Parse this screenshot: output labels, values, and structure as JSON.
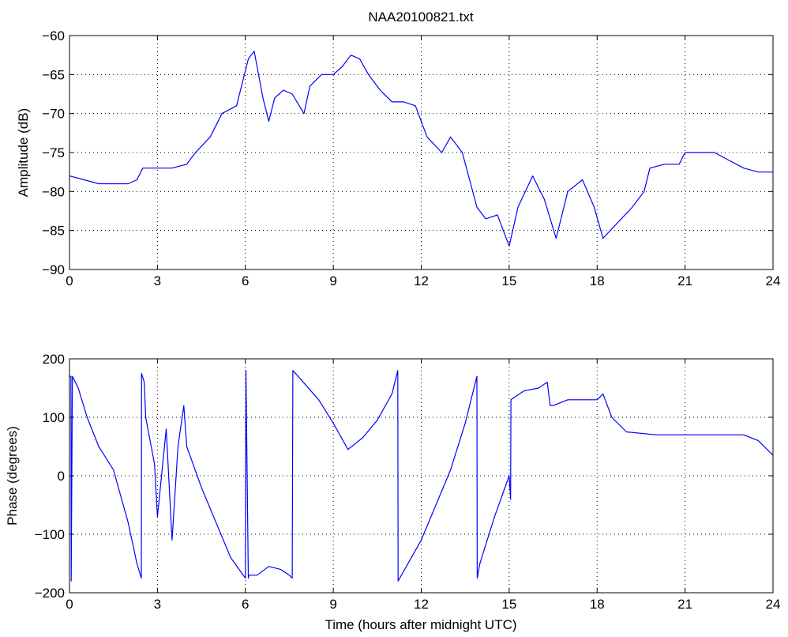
{
  "chart_data": [
    {
      "type": "line",
      "title": "NAA20100821.txt",
      "xlabel": "",
      "ylabel": "Amplitude (dB)",
      "xlim": [
        0,
        24
      ],
      "ylim": [
        -90,
        -60
      ],
      "grid": true,
      "x_ticks": [
        "0",
        "3",
        "6",
        "9",
        "12",
        "15",
        "18",
        "21",
        "24"
      ],
      "y_ticks": [
        "-90",
        "-85",
        "-80",
        "-75",
        "-70",
        "-65",
        "-60"
      ],
      "series": [
        {
          "color": "#0000ff",
          "x": [
            0,
            0.5,
            1,
            1.5,
            2,
            2.3,
            2.5,
            3,
            3.5,
            4,
            4.3,
            4.8,
            5.2,
            5.7,
            6.1,
            6.3,
            6.6,
            6.8,
            7,
            7.3,
            7.6,
            8,
            8.2,
            8.6,
            9,
            9.3,
            9.6,
            9.9,
            10.2,
            10.6,
            11,
            11.4,
            11.8,
            12.2,
            12.7,
            13,
            13.4,
            13.9,
            14.2,
            14.6,
            15,
            15.3,
            15.8,
            16.2,
            16.6,
            17,
            17.5,
            17.9,
            18.2,
            18.7,
            19.2,
            19.6,
            19.8,
            20.3,
            20.8,
            21,
            21.5,
            22,
            22.5,
            23,
            23.5,
            24
          ],
          "y": [
            -78,
            -78.5,
            -79,
            -79,
            -79,
            -78.5,
            -77,
            -77,
            -77,
            -76.5,
            -75,
            -73,
            -70,
            -69,
            -63,
            -62,
            -68,
            -71,
            -68,
            -67,
            -67.5,
            -70,
            -66.5,
            -65,
            -65,
            -64,
            -62.5,
            -63,
            -65,
            -67,
            -68.5,
            -68.5,
            -69,
            -73,
            -75,
            -73,
            -75,
            -82,
            -83.5,
            -83,
            -87,
            -82,
            -78,
            -81,
            -86,
            -80,
            -78.5,
            -82,
            -86,
            -84,
            -82,
            -80,
            -77,
            -76.5,
            -76.5,
            -75,
            -75,
            -75,
            -76,
            -77,
            -77.5,
            -77.5
          ]
        }
      ]
    },
    {
      "type": "line",
      "title": "",
      "xlabel": "Time (hours after midnight UTC)",
      "ylabel": "Phase (degrees)",
      "xlim": [
        0,
        24
      ],
      "ylim": [
        -200,
        200
      ],
      "grid": true,
      "x_ticks": [
        "0",
        "3",
        "6",
        "9",
        "12",
        "15",
        "18",
        "21",
        "24"
      ],
      "y_ticks": [
        "-200",
        "-100",
        "0",
        "100",
        "200"
      ],
      "series": [
        {
          "color": "#0000ff",
          "x": [
            0,
            0.05,
            0.06,
            0.1,
            0.3,
            0.6,
            1,
            1.5,
            2,
            2.3,
            2.45,
            2.46,
            2.55,
            2.6,
            2.9,
            3.0,
            3.3,
            3.5,
            3.7,
            3.9,
            4.0,
            4.5,
            5,
            5.5,
            6.0,
            6.02,
            6.1,
            6.12,
            6.4,
            6.8,
            7.2,
            7.5,
            7.6,
            7.62,
            7.8,
            8.5,
            9.0,
            9.5,
            10.0,
            10.5,
            11.0,
            11.2,
            11.21,
            12,
            13,
            13.5,
            13.9,
            13.91,
            14.0,
            14.5,
            15.0,
            15.05,
            15.06,
            15.5,
            16.0,
            16.3,
            16.4,
            16.5,
            17,
            17.5,
            18.0,
            18.2,
            18.5,
            19,
            20,
            21,
            22,
            23,
            23.5,
            24
          ],
          "y": [
            170,
            170,
            -180,
            170,
            150,
            100,
            50,
            10,
            -80,
            -150,
            -175,
            175,
            160,
            100,
            20,
            -70,
            80,
            -110,
            50,
            120,
            50,
            -20,
            -80,
            -140,
            -175,
            180,
            -175,
            -170,
            -170,
            -155,
            -160,
            -170,
            -175,
            180,
            170,
            130,
            90,
            45,
            65,
            95,
            140,
            180,
            -180,
            -110,
            10,
            90,
            170,
            -175,
            -150,
            -70,
            0,
            -40,
            130,
            145,
            150,
            160,
            120,
            120,
            130,
            130,
            130,
            140,
            100,
            75,
            70,
            70,
            70,
            70,
            60,
            35
          ]
        }
      ]
    }
  ]
}
